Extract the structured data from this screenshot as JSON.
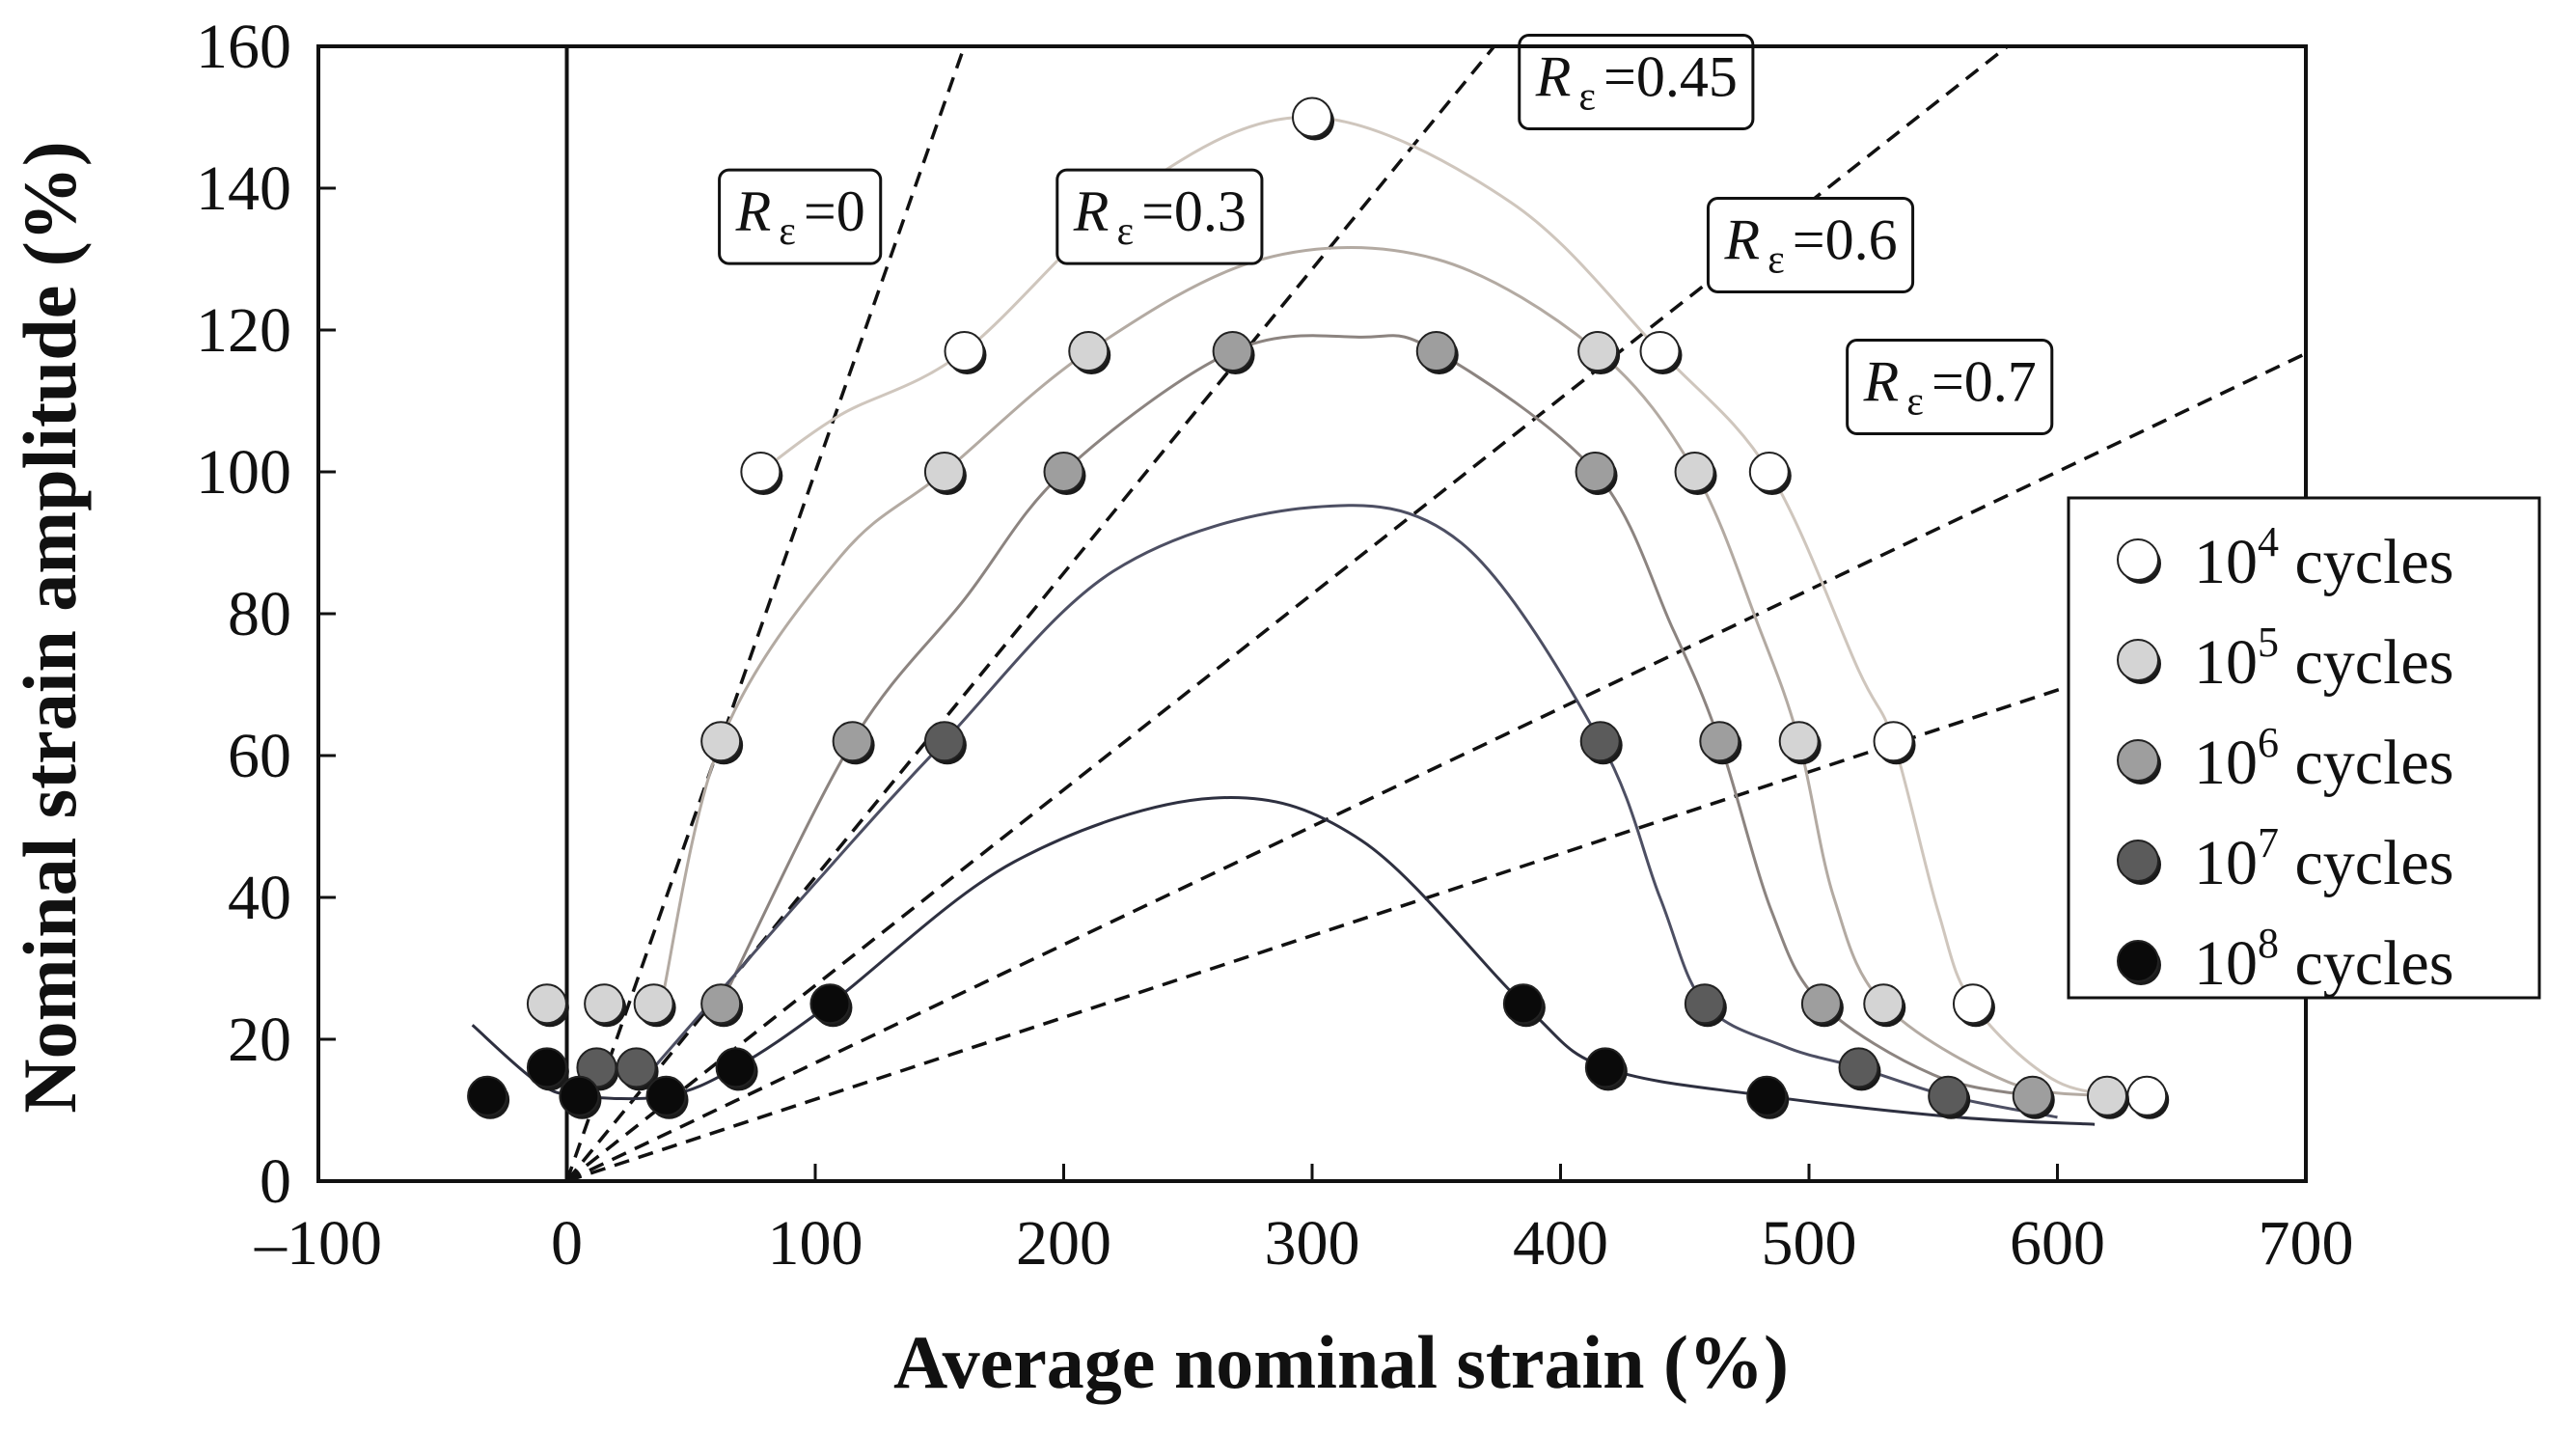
{
  "chart_data": {
    "type": "scatter",
    "title": "",
    "xlabel": "Average nominal strain (%)",
    "ylabel": "Nominal strain amplitude (%)",
    "xlim": [
      -100,
      700
    ],
    "ylim": [
      0,
      160
    ],
    "x_ticks": [
      -100,
      0,
      100,
      200,
      300,
      400,
      500,
      600,
      700
    ],
    "x_tick_labels": [
      "–100",
      "0",
      "100",
      "200",
      "300",
      "400",
      "500",
      "600",
      "700"
    ],
    "y_ticks": [
      0,
      20,
      40,
      60,
      80,
      100,
      120,
      140,
      160
    ],
    "y_tick_labels": [
      "0",
      "20",
      "40",
      "60",
      "80",
      "100",
      "120",
      "140",
      "160"
    ],
    "grid": false,
    "legend_position": "right",
    "ratio_lines": [
      {
        "label_symbol": "R",
        "label_subscript": "ε",
        "label_value": "=0",
        "ratio": 0,
        "slope": 1.0
      },
      {
        "label_symbol": "R",
        "label_subscript": "ε",
        "label_value": "=0.3",
        "ratio": 0.3,
        "slope": 0.4286
      },
      {
        "label_symbol": "R",
        "label_subscript": "ε",
        "label_value": "=0.45",
        "ratio": 0.45,
        "slope": 0.2759
      },
      {
        "label_symbol": "R",
        "label_subscript": "ε",
        "label_value": "=0.6",
        "ratio": 0.6,
        "slope": 0.1667
      },
      {
        "label_symbol": "R",
        "label_subscript": "ε",
        "label_value": "=0.7",
        "ratio": 0.7,
        "slope": 0.1154
      }
    ],
    "series": [
      {
        "name": "10^4 cycles",
        "legend_base": "10",
        "legend_exp": "4",
        "legend_suffix": " cycles",
        "color": "#ffffff",
        "points": [
          [
            78,
            100
          ],
          [
            160,
            117
          ],
          [
            300,
            150
          ],
          [
            440,
            117
          ],
          [
            484,
            100
          ],
          [
            534,
            62
          ],
          [
            566,
            25
          ],
          [
            636,
            12
          ]
        ],
        "curve": [
          [
            78,
            100
          ],
          [
            110,
            108
          ],
          [
            160,
            117
          ],
          [
            230,
            140
          ],
          [
            300,
            150
          ],
          [
            380,
            138
          ],
          [
            440,
            117
          ],
          [
            484,
            100
          ],
          [
            520,
            72
          ],
          [
            534,
            62
          ],
          [
            552,
            38
          ],
          [
            566,
            25
          ],
          [
            600,
            14
          ],
          [
            636,
            12
          ]
        ]
      },
      {
        "name": "10^5 cycles",
        "legend_base": "10",
        "legend_exp": "5",
        "legend_suffix": " cycles",
        "color": "#d4d4d4",
        "points": [
          [
            62,
            62
          ],
          [
            152,
            100
          ],
          [
            210,
            117
          ],
          [
            415,
            117
          ],
          [
            454,
            100
          ],
          [
            496,
            62
          ],
          [
            530,
            25
          ],
          [
            620,
            12
          ],
          [
            15,
            25
          ],
          [
            35,
            25
          ],
          [
            -8,
            25
          ]
        ],
        "curve": [
          [
            38,
            25
          ],
          [
            62,
            62
          ],
          [
            110,
            88
          ],
          [
            152,
            100
          ],
          [
            210,
            117
          ],
          [
            280,
            130
          ],
          [
            350,
            130
          ],
          [
            415,
            117
          ],
          [
            454,
            100
          ],
          [
            480,
            78
          ],
          [
            496,
            62
          ],
          [
            510,
            40
          ],
          [
            530,
            25
          ],
          [
            580,
            14
          ],
          [
            620,
            12
          ]
        ]
      },
      {
        "name": "10^6 cycles",
        "legend_base": "10",
        "legend_exp": "6",
        "legend_suffix": " cycles",
        "color": "#9e9e9e",
        "points": [
          [
            115,
            62
          ],
          [
            200,
            100
          ],
          [
            268,
            117
          ],
          [
            350,
            117
          ],
          [
            414,
            100
          ],
          [
            464,
            62
          ],
          [
            505,
            25
          ],
          [
            590,
            12
          ],
          [
            62,
            25
          ]
        ],
        "curve": [
          [
            62,
            25
          ],
          [
            115,
            62
          ],
          [
            160,
            82
          ],
          [
            200,
            100
          ],
          [
            268,
            117
          ],
          [
            320,
            119
          ],
          [
            350,
            117
          ],
          [
            414,
            100
          ],
          [
            445,
            78
          ],
          [
            464,
            62
          ],
          [
            485,
            38
          ],
          [
            505,
            25
          ],
          [
            550,
            15
          ],
          [
            590,
            12
          ]
        ]
      },
      {
        "name": "10^7 cycles",
        "legend_base": "10",
        "legend_exp": "7",
        "legend_suffix": " cycles",
        "color": "#5b5b5b",
        "points": [
          [
            152,
            62
          ],
          [
            416,
            62
          ],
          [
            458,
            25
          ],
          [
            520,
            16
          ],
          [
            556,
            12
          ],
          [
            12,
            16
          ],
          [
            28,
            16
          ]
        ],
        "curve": [
          [
            35,
            16
          ],
          [
            100,
            42
          ],
          [
            152,
            62
          ],
          [
            220,
            86
          ],
          [
            300,
            95
          ],
          [
            360,
            90
          ],
          [
            416,
            62
          ],
          [
            440,
            40
          ],
          [
            458,
            25
          ],
          [
            490,
            19
          ],
          [
            520,
            16
          ],
          [
            556,
            12
          ],
          [
            600,
            9
          ]
        ]
      },
      {
        "name": "10^8 cycles",
        "legend_base": "10",
        "legend_exp": "8",
        "legend_suffix": " cycles",
        "color": "#0a0a0a",
        "points": [
          [
            -32,
            12
          ],
          [
            -8,
            16
          ],
          [
            5,
            12
          ],
          [
            40,
            12
          ],
          [
            68,
            16
          ],
          [
            106,
            25
          ],
          [
            385,
            25
          ],
          [
            418,
            16
          ],
          [
            483,
            12
          ]
        ],
        "curve": [
          [
            -38,
            22
          ],
          [
            -12,
            14
          ],
          [
            5,
            12
          ],
          [
            40,
            12
          ],
          [
            68,
            16
          ],
          [
            106,
            25
          ],
          [
            180,
            45
          ],
          [
            260,
            54
          ],
          [
            320,
            48
          ],
          [
            385,
            25
          ],
          [
            418,
            16
          ],
          [
            483,
            12
          ],
          [
            560,
            9
          ],
          [
            615,
            8
          ]
        ]
      }
    ]
  }
}
